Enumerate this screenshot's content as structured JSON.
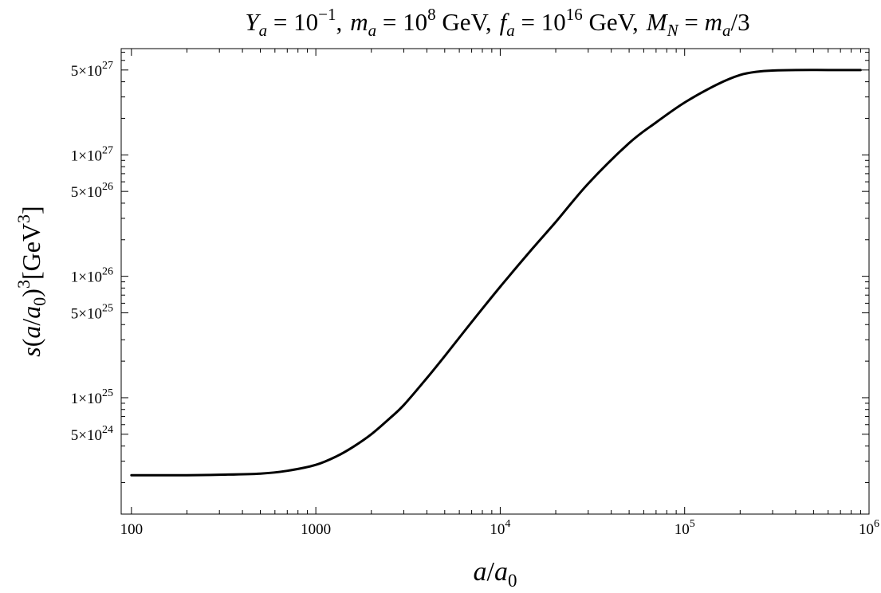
{
  "chart_data": {
    "type": "line",
    "title": "Y_a = 10^-1, m_a = 10^8 GeV, f_a = 10^16 GeV, M_N = m_a/3",
    "title_parts": {
      "Y": "Y",
      "a": "a",
      "eq": " = 10",
      "exp_neg1": "−1",
      "comma": ",",
      "m": "m",
      "eq2": " = 10",
      "exp8": "8",
      "gev": " GeV",
      "f": "f",
      "eq3": " = 10",
      "exp16": "16",
      "M": "M",
      "N": "N",
      "eq4": " = ",
      "slash3": "/3"
    },
    "xlabel": "a/a0",
    "xlabel_parts": {
      "a": "a",
      "slash": "/",
      "zero": "0"
    },
    "ylabel": "s(a/a0)^3[GeV^3]",
    "ylabel_parts": {
      "s": "s",
      "open": "(",
      "a": "a",
      "slash": "/",
      "zero": "0",
      "close": ")",
      "three": "3",
      "unit": "[GeV",
      "bracket": "]"
    },
    "x_scale": "log",
    "y_scale": "log",
    "xlim": [
      88,
      1000000
    ],
    "ylim": [
      1.1e+24,
      7.5e+27
    ],
    "x_ticks": [
      {
        "value": 100,
        "label": "100"
      },
      {
        "value": 1000,
        "label": "1000"
      },
      {
        "value": 10000,
        "label": "10",
        "sup": "4"
      },
      {
        "value": 100000,
        "label": "10",
        "sup": "5"
      },
      {
        "value": 1000000,
        "label": "10",
        "sup": "6"
      }
    ],
    "y_ticks": [
      {
        "value": 5e+24,
        "mant": "5",
        "sup": "24"
      },
      {
        "value": 1e+25,
        "mant": "1",
        "sup": "25"
      },
      {
        "value": 5e+25,
        "mant": "5",
        "sup": "25"
      },
      {
        "value": 1e+26,
        "mant": "1",
        "sup": "26"
      },
      {
        "value": 5e+26,
        "mant": "5",
        "sup": "26"
      },
      {
        "value": 1e+27,
        "mant": "1",
        "sup": "27"
      },
      {
        "value": 5e+27,
        "mant": "5",
        "sup": "27"
      }
    ],
    "tick_times": "×10",
    "grid": false,
    "series": [
      {
        "color": "#000000",
        "x": [
          100,
          200,
          300,
          500,
          700,
          1000,
          1300,
          1600,
          2000,
          2500,
          3000,
          4000,
          5000,
          7000,
          10000,
          15000,
          20000,
          30000,
          50000,
          70000,
          100000,
          150000,
          200000,
          250000,
          300000,
          400000,
          600000,
          900000
        ],
        "y": [
          2.3e+24,
          2.3e+24,
          2.32e+24,
          2.37e+24,
          2.5e+24,
          2.8e+24,
          3.3e+24,
          3.95e+24,
          5e+24,
          6.7e+24,
          8.7e+24,
          1.45e+25,
          2.2e+25,
          4.2e+25,
          8.2e+25,
          1.7e+26,
          2.8e+26,
          5.8e+26,
          1.25e+27,
          1.85e+27,
          2.7e+27,
          3.8e+27,
          4.55e+27,
          4.85e+27,
          4.95e+27,
          5e+27,
          5e+27,
          5e+27
        ]
      }
    ]
  }
}
